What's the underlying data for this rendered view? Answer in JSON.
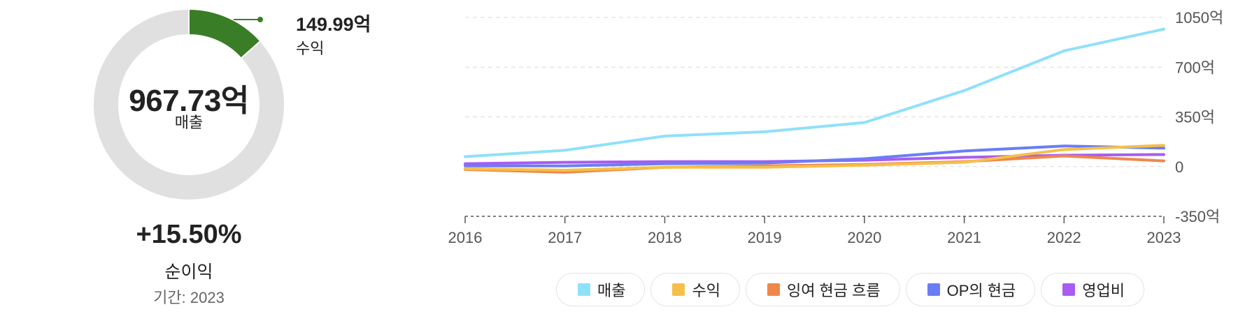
{
  "summary": {
    "center_value": "967.73억",
    "center_label": "매출",
    "callout_value": "149.99억",
    "callout_label": "수익",
    "change": "+15.50%",
    "change_label": "순이익",
    "period": "기간: 2023"
  },
  "chart_data": [
    {
      "type": "pie",
      "variant": "donut",
      "slices": [
        {
          "name": "수익",
          "value": 149.99,
          "color": "#3a7d27"
        },
        {
          "name": "매출",
          "value": 967.73,
          "color": "#e0e0e0"
        }
      ],
      "center_text": "967.73억",
      "center_label": "매출"
    },
    {
      "type": "line",
      "x": [
        2016,
        2017,
        2018,
        2019,
        2020,
        2021,
        2022,
        2023
      ],
      "ylim": [
        -350,
        1050
      ],
      "yticks": [
        1050,
        700,
        350,
        0,
        -350
      ],
      "ytick_labels": [
        "1050억",
        "700억",
        "350억",
        "0",
        "-350억"
      ],
      "grid": true,
      "y_axis_position": "right",
      "legend_position": "bottom",
      "series": [
        {
          "name": "매출",
          "color": "#8fe0fa",
          "values": [
            70,
            115,
            215,
            245,
            310,
            535,
            815,
            967.73
          ]
        },
        {
          "name": "수익",
          "color": "#f5c04a",
          "values": [
            -15,
            -25,
            -5,
            -5,
            10,
            30,
            120,
            149.99
          ]
        },
        {
          "name": "잉여 현금 흐름",
          "color": "#f0874a",
          "values": [
            -20,
            -40,
            -5,
            5,
            15,
            35,
            75,
            40
          ]
        },
        {
          "name": "OP의 현금",
          "color": "#6b7df5",
          "values": [
            5,
            5,
            20,
            25,
            55,
            110,
            145,
            130
          ]
        },
        {
          "name": "영업비",
          "color": "#a85cf0",
          "values": [
            20,
            30,
            35,
            35,
            45,
            65,
            80,
            85
          ]
        }
      ]
    }
  ]
}
